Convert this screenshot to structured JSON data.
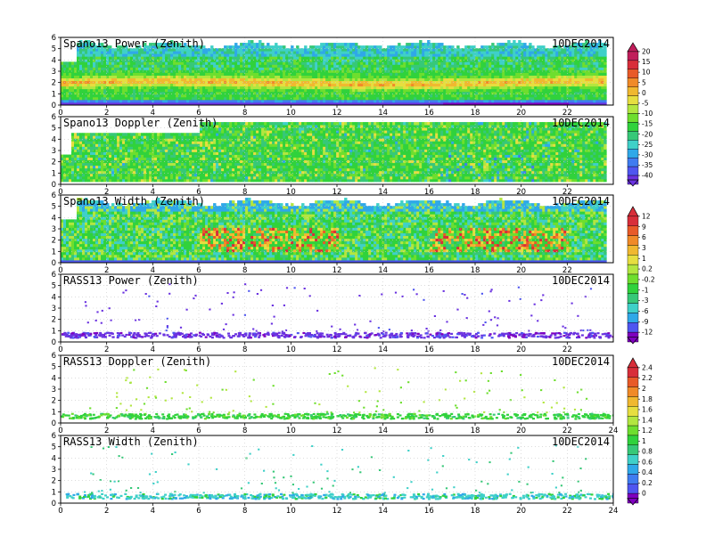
{
  "palette": [
    "#7f00bf",
    "#6a32e0",
    "#4f56f0",
    "#3f7cf0",
    "#2fa8e8",
    "#3fd0c8",
    "#37c878",
    "#30d23c",
    "#6ede2e",
    "#b2e640",
    "#e6de40",
    "#f0b830",
    "#f08a28",
    "#e85a28",
    "#d82e3a",
    "#c01e5a"
  ],
  "chart_data": [
    {
      "type": "heatmap",
      "id": "spano13-power",
      "title": "Spano13 Power (Zenith)",
      "date": "10DEC2014",
      "x": {
        "range": [
          0,
          24
        ],
        "ticks": [
          "0",
          "2",
          "4",
          "6",
          "8",
          "10",
          "12",
          "14",
          "16",
          "18",
          "20",
          "22"
        ]
      },
      "y": {
        "range": [
          0,
          6
        ],
        "ticks": [
          "0",
          "1",
          "2",
          "3",
          "4",
          "5",
          "6"
        ]
      },
      "grid": true,
      "data_extent_hours": 23.7,
      "colorbar": {
        "group": "A",
        "labels": [
          "20",
          "15",
          "10",
          "5",
          "0",
          "-5",
          "-10",
          "-15",
          "-20",
          "-25",
          "-30",
          "-35",
          "-40"
        ]
      }
    },
    {
      "type": "heatmap",
      "id": "spano13-doppler",
      "title": "Spano13 Doppler (Zenith)",
      "date": "10DEC2014",
      "x": {
        "range": [
          0,
          24
        ],
        "ticks": [
          "0",
          "2",
          "4",
          "6",
          "8",
          "10",
          "12",
          "14",
          "16",
          "18",
          "20",
          "22"
        ]
      },
      "y": {
        "range": [
          0,
          6
        ],
        "ticks": [
          "0",
          "1",
          "2",
          "3",
          "4",
          "5",
          "6"
        ]
      },
      "grid": true,
      "data_extent_hours": 23.7,
      "colorbar": {
        "group": "A"
      }
    },
    {
      "type": "heatmap",
      "id": "spano13-width",
      "title": "Spano13 Width (Zenith)",
      "date": "10DEC2014",
      "x": {
        "range": [
          0,
          24
        ],
        "ticks": [
          "0",
          "2",
          "4",
          "6",
          "8",
          "10",
          "12",
          "14",
          "16",
          "18",
          "20",
          "22"
        ]
      },
      "y": {
        "range": [
          0,
          6
        ],
        "ticks": [
          "0",
          "1",
          "2",
          "3",
          "4",
          "5",
          "6"
        ]
      },
      "grid": true,
      "data_extent_hours": 23.7,
      "colorbar": {
        "group": "B",
        "labels": [
          "12",
          "9",
          "6",
          "3",
          "1",
          "0.2",
          "-0.2",
          "-1",
          "-3",
          "-6",
          "-9",
          "-12"
        ]
      }
    },
    {
      "type": "scatter",
      "id": "rass13-power",
      "title": "RASS13 Power (Zenith)",
      "date": "10DEC2014",
      "x": {
        "range": [
          0,
          24
        ],
        "ticks": [
          "0",
          "2",
          "4",
          "6",
          "8",
          "10",
          "12",
          "14",
          "16",
          "18",
          "20",
          "22"
        ]
      },
      "y": {
        "range": [
          0,
          6
        ],
        "ticks": [
          "0",
          "1",
          "2",
          "3",
          "4",
          "5",
          "6"
        ]
      },
      "grid": true,
      "colorbar": {
        "group": "B"
      }
    },
    {
      "type": "scatter",
      "id": "rass13-doppler",
      "title": "RASS13 Doppler (Zenith)",
      "date": "10DEC2014",
      "x": {
        "range": [
          0,
          24
        ],
        "ticks": [
          "0",
          "2",
          "4",
          "6",
          "8",
          "10",
          "12",
          "14",
          "16",
          "18",
          "20",
          "22",
          "24"
        ]
      },
      "y": {
        "range": [
          0,
          6
        ],
        "ticks": [
          "0",
          "1",
          "2",
          "3",
          "4",
          "5",
          "6"
        ]
      },
      "grid": true,
      "colorbar": {
        "group": "C",
        "labels": [
          "2.4",
          "2.2",
          "2",
          "1.8",
          "1.6",
          "1.4",
          "1.2",
          "1",
          "0.8",
          "0.6",
          "0.4",
          "0.2",
          "0"
        ]
      }
    },
    {
      "type": "scatter",
      "id": "rass13-width",
      "title": "RASS13 Width (Zenith)",
      "date": "10DEC2014",
      "x": {
        "range": [
          0,
          24
        ],
        "ticks": [
          "0",
          "2",
          "4",
          "6",
          "8",
          "10",
          "12",
          "14",
          "16",
          "18",
          "20",
          "22",
          "24"
        ]
      },
      "y": {
        "range": [
          0,
          6
        ],
        "ticks": [
          "0",
          "1",
          "2",
          "3",
          "4",
          "5",
          "6"
        ]
      },
      "grid": true,
      "colorbar": {
        "group": "C"
      }
    }
  ]
}
